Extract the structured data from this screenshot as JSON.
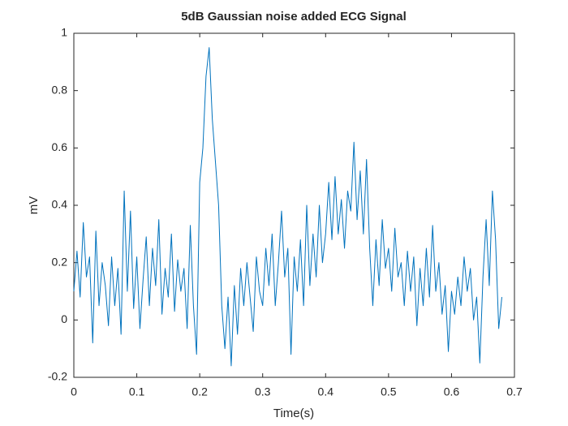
{
  "chart_data": {
    "type": "line",
    "title": "5dB Gaussian noise added ECG Signal",
    "xlabel": "Time(s)",
    "ylabel": "mV",
    "x": [
      0,
      0.005,
      0.01,
      0.015,
      0.02,
      0.025,
      0.03,
      0.035,
      0.04,
      0.045,
      0.05,
      0.055,
      0.06,
      0.065,
      0.07,
      0.075,
      0.08,
      0.085,
      0.09,
      0.095,
      0.1,
      0.105,
      0.11,
      0.115,
      0.12,
      0.125,
      0.13,
      0.135,
      0.14,
      0.145,
      0.15,
      0.155,
      0.16,
      0.165,
      0.17,
      0.175,
      0.18,
      0.185,
      0.19,
      0.195,
      0.2,
      0.205,
      0.21,
      0.215,
      0.22,
      0.225,
      0.23,
      0.235,
      0.24,
      0.245,
      0.25,
      0.255,
      0.26,
      0.265,
      0.27,
      0.275,
      0.28,
      0.285,
      0.29,
      0.295,
      0.3,
      0.305,
      0.31,
      0.315,
      0.32,
      0.325,
      0.33,
      0.335,
      0.34,
      0.345,
      0.35,
      0.355,
      0.36,
      0.365,
      0.37,
      0.375,
      0.38,
      0.385,
      0.39,
      0.395,
      0.4,
      0.405,
      0.41,
      0.415,
      0.42,
      0.425,
      0.43,
      0.435,
      0.44,
      0.445,
      0.45,
      0.455,
      0.46,
      0.465,
      0.47,
      0.475,
      0.48,
      0.485,
      0.49,
      0.495,
      0.5,
      0.505,
      0.51,
      0.515,
      0.52,
      0.525,
      0.53,
      0.535,
      0.54,
      0.545,
      0.55,
      0.555,
      0.56,
      0.565,
      0.57,
      0.575,
      0.58,
      0.585,
      0.59,
      0.595,
      0.6,
      0.605,
      0.61,
      0.615,
      0.62,
      0.625,
      0.63,
      0.635,
      0.64,
      0.645,
      0.65,
      0.655,
      0.66,
      0.665,
      0.67,
      0.675,
      0.68
    ],
    "series": [
      {
        "color": "#0072bd",
        "values": [
          0.1,
          0.24,
          0.08,
          0.34,
          0.15,
          0.22,
          -0.08,
          0.31,
          0.05,
          0.2,
          0.12,
          -0.02,
          0.22,
          0.05,
          0.18,
          -0.05,
          0.45,
          0.1,
          0.38,
          0.04,
          0.22,
          -0.03,
          0.14,
          0.29,
          0.05,
          0.25,
          0.12,
          0.35,
          0.02,
          0.18,
          0.08,
          0.3,
          0.03,
          0.21,
          0.1,
          0.18,
          -0.03,
          0.33,
          0.05,
          -0.12,
          0.48,
          0.6,
          0.85,
          0.95,
          0.7,
          0.55,
          0.4,
          0.05,
          -0.1,
          0.08,
          -0.16,
          0.12,
          -0.05,
          0.18,
          0.05,
          0.2,
          0.08,
          -0.04,
          0.22,
          0.1,
          0.05,
          0.25,
          0.12,
          0.3,
          0.05,
          0.2,
          0.38,
          0.15,
          0.25,
          -0.12,
          0.22,
          0.1,
          0.28,
          0.05,
          0.4,
          0.12,
          0.3,
          0.15,
          0.4,
          0.2,
          0.3,
          0.48,
          0.28,
          0.5,
          0.3,
          0.42,
          0.25,
          0.45,
          0.38,
          0.62,
          0.35,
          0.52,
          0.3,
          0.56,
          0.25,
          0.05,
          0.28,
          0.12,
          0.35,
          0.18,
          0.25,
          0.1,
          0.32,
          0.15,
          0.2,
          0.05,
          0.24,
          0.1,
          0.22,
          -0.02,
          0.18,
          0.05,
          0.25,
          0.08,
          0.33,
          0.1,
          0.2,
          0.02,
          0.12,
          -0.11,
          0.1,
          0.02,
          0.15,
          0.05,
          0.22,
          0.1,
          0.18,
          0.0,
          0.08,
          -0.15,
          0.15,
          0.35,
          0.12,
          0.45,
          0.28,
          -0.03,
          0.08
        ]
      }
    ],
    "xlim": [
      0,
      0.7
    ],
    "xticks": [
      0,
      0.1,
      0.2,
      0.3,
      0.4,
      0.5,
      0.6,
      0.7
    ],
    "ylim": [
      -0.2,
      1
    ],
    "yticks": [
      -0.2,
      0,
      0.2,
      0.4,
      0.6,
      0.8,
      1
    ],
    "grid": false
  }
}
